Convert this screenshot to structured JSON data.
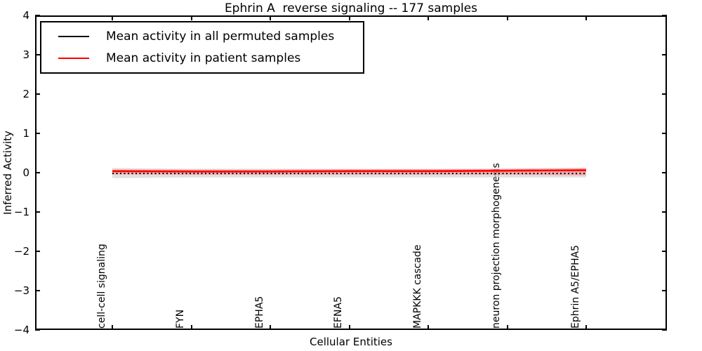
{
  "chart_data": {
    "type": "line",
    "title": "Ephrin A  reverse signaling -- 177 samples",
    "xlabel": "Cellular Entities",
    "ylabel": "Inferred Activity",
    "ylim": [
      -4,
      4
    ],
    "yticks": [
      4,
      3,
      2,
      1,
      0,
      -1,
      -2,
      -3,
      -4
    ],
    "grid": false,
    "legend_position": "upper left",
    "categories": [
      "cell-cell signaling",
      "FYN",
      "EPHA5",
      "EFNA5",
      "MAPKKK cascade",
      "neuron projection morphogenesis",
      "Ephrin A5/EPHA5"
    ],
    "series": [
      {
        "name": "Mean activity in all permuted samples",
        "color": "#000000",
        "style": "dashed",
        "values": [
          -0.02,
          -0.02,
          -0.02,
          -0.02,
          -0.02,
          -0.02,
          -0.02
        ],
        "band": {
          "fill": "#c8c8c8",
          "upper": [
            0.12,
            0.1,
            0.1,
            0.1,
            0.1,
            0.1,
            0.11
          ],
          "lower": [
            -0.14,
            -0.12,
            -0.12,
            -0.12,
            -0.12,
            -0.12,
            -0.12
          ]
        }
      },
      {
        "name": "Mean activity in patient samples",
        "color": "#ff0000",
        "style": "solid",
        "values": [
          0.04,
          0.03,
          0.03,
          0.04,
          0.04,
          0.05,
          0.06
        ],
        "band": {
          "fill": "#ff8080",
          "upper": [
            0.08,
            0.08,
            0.08,
            0.09,
            0.09,
            0.1,
            0.12
          ],
          "lower": [
            -0.04,
            -0.05,
            -0.05,
            -0.05,
            -0.05,
            -0.05,
            -0.07
          ]
        }
      }
    ]
  }
}
